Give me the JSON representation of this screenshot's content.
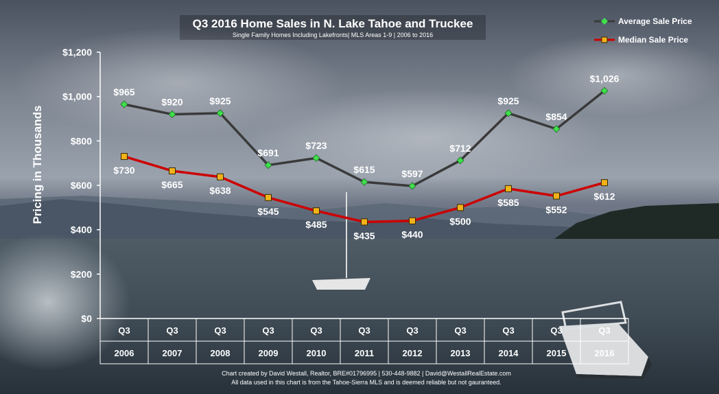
{
  "chart_data": {
    "type": "line",
    "title": "Q3 2016 Home Sales in N. Lake Tahoe and Truckee",
    "subtitle": "Single Family Homes Including Lakefronts| MLS Areas 1-9 | 2006 to 2016",
    "ylabel": "Pricing in Thousands",
    "ylim": [
      0,
      1200
    ],
    "yticks": [
      "$0",
      "$200",
      "$400",
      "$600",
      "$800",
      "$1,000",
      "$1,200"
    ],
    "ytick_values": [
      0,
      200,
      400,
      600,
      800,
      1000,
      1200
    ],
    "categories": [
      [
        "Q3",
        "2006"
      ],
      [
        "Q3",
        "2007"
      ],
      [
        "Q3",
        "2008"
      ],
      [
        "Q3",
        "2009"
      ],
      [
        "Q3",
        "2010"
      ],
      [
        "Q3",
        "2011"
      ],
      [
        "Q3",
        "2012"
      ],
      [
        "Q3",
        "2013"
      ],
      [
        "Q3",
        "2014"
      ],
      [
        "Q3",
        "2015"
      ],
      [
        "Q3",
        "2016"
      ]
    ],
    "series": [
      {
        "name": "Average Sale Price",
        "color": "#3a3a3a",
        "marker_color": "#3fe04a",
        "values": [
          965,
          920,
          925,
          691,
          723,
          615,
          597,
          712,
          925,
          854,
          1026
        ],
        "labels": [
          "$965",
          "$920",
          "$925",
          "$691",
          "$723",
          "$615",
          "$597",
          "$712",
          "$925",
          "$854",
          "$1,026"
        ]
      },
      {
        "name": "Median Sale Price",
        "color": "#cc0000",
        "marker_color": "#f2b21a",
        "values": [
          730,
          665,
          638,
          545,
          485,
          435,
          440,
          500,
          585,
          552,
          612
        ],
        "labels": [
          "$730",
          "$665",
          "$638",
          "$545",
          "$485",
          "$435",
          "$440",
          "$500",
          "$585",
          "$552",
          "$612"
        ]
      }
    ],
    "legend_position": "top-right",
    "grid": false,
    "footer": [
      "Chart created by David Westall, Realtor, BRE#01796995 | 530-448-9882 | David@WestallRealEstate.com",
      "All data used in this chart is from the Tahoe-Sierra MLS and is deemed reliable but not gauranteed."
    ]
  }
}
